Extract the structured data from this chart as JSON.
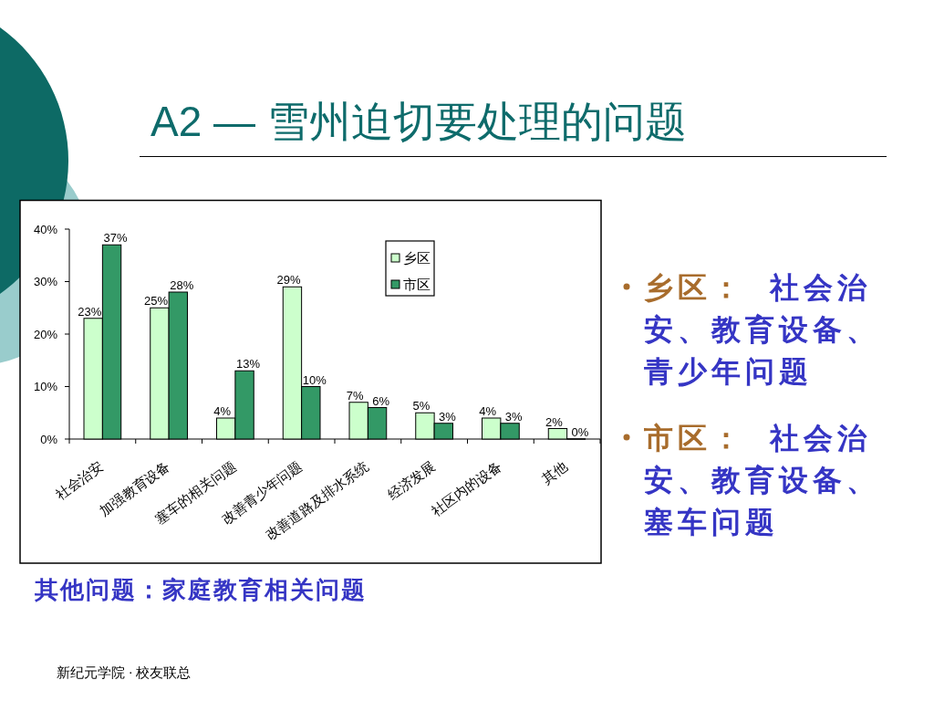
{
  "chart_data": {
    "type": "bar",
    "title": "A2 — 雪州迫切要处理的问题",
    "categories": [
      "社会治安",
      "加强教育设备",
      "塞车的相关问题",
      "改善青少年问题",
      "改善道路及排水系统",
      "经济发展",
      "社区内的设备",
      "其他"
    ],
    "series": [
      {
        "name": "乡区",
        "color": "#ccffcc",
        "values": [
          23,
          25,
          4,
          29,
          7,
          5,
          4,
          2
        ],
        "value_labels": [
          "23%",
          "25%",
          "4%",
          "29%",
          "7%",
          "5%",
          "4%",
          "2%"
        ]
      },
      {
        "name": "市区",
        "color": "#339966",
        "values": [
          37,
          28,
          13,
          10,
          6,
          3,
          3,
          0
        ],
        "value_labels": [
          "37%",
          "28%",
          "13%",
          "10%",
          "6%",
          "3%",
          "3%",
          "0%"
        ]
      }
    ],
    "ylim": [
      0,
      40
    ],
    "yticks": [
      {
        "value": 0,
        "label": "0%"
      },
      {
        "value": 10,
        "label": "10%"
      },
      {
        "value": 20,
        "label": "20%"
      },
      {
        "value": 30,
        "label": "30%"
      },
      {
        "value": 40,
        "label": "40%"
      }
    ],
    "legend": "top right",
    "annotations": [
      "乡区： 社会治安、教育设备、青少年问题",
      "市区： 社会治安、教育设备、塞车问题",
      "其他问题：家庭教育相关问题",
      "新纪元学院 · 校友联总"
    ]
  }
}
